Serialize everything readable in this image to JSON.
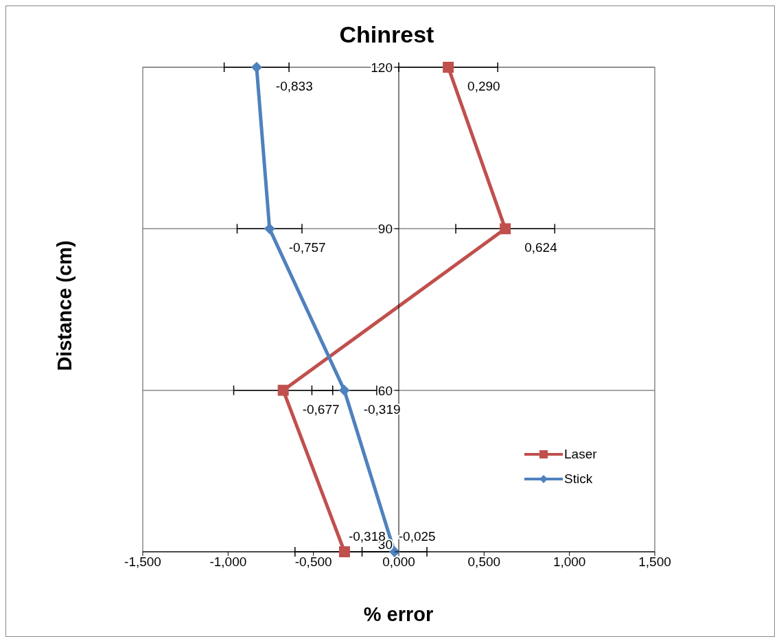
{
  "chart_data": {
    "type": "line",
    "title": "Chinrest",
    "xlabel": "% error",
    "ylabel": "Distance (cm)",
    "orientation": "horizontal",
    "x": [
      30,
      60,
      90,
      120
    ],
    "series": [
      {
        "name": "Laser",
        "color": "#c0504d",
        "marker": "square",
        "values": [
          -0.318,
          -0.677,
          0.624,
          0.29
        ],
        "errors": [
          0.29,
          0.29,
          0.29,
          0.29
        ],
        "value_labels": [
          "-0,318",
          "-0,677",
          "0,624",
          "0,290"
        ]
      },
      {
        "name": "Stick",
        "color": "#4f81bd",
        "marker": "diamond",
        "values": [
          -0.025,
          -0.319,
          -0.757,
          -0.833
        ],
        "errors": [
          0.19,
          0.19,
          0.19,
          0.19
        ],
        "value_labels": [
          "-0,025",
          "-0,319",
          "-0,757",
          "-0,833"
        ]
      }
    ],
    "xlim": [
      -1.5,
      1.5
    ],
    "xticks": [
      {
        "value": -1.5,
        "label": "-1,500"
      },
      {
        "value": -1,
        "label": "-1,000"
      },
      {
        "value": -0.5,
        "label": "-0,500"
      },
      {
        "value": 0,
        "label": "0,000"
      },
      {
        "value": 0.5,
        "label": "0,500"
      },
      {
        "value": 1,
        "label": "1,000"
      },
      {
        "value": 1.5,
        "label": "1,500"
      }
    ],
    "ylim": [
      30,
      120
    ],
    "yticks": [
      30,
      60,
      90,
      120
    ],
    "grid": "y",
    "legend": "bottom right",
    "line_style": "solid"
  }
}
